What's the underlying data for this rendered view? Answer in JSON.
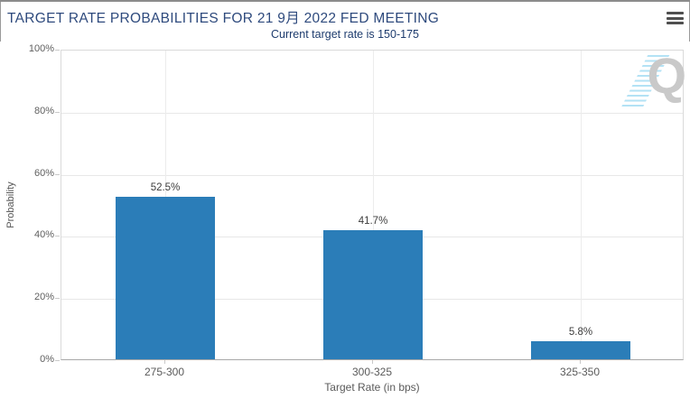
{
  "header": {
    "title": "TARGET RATE PROBABILITIES FOR 21 9月 2022 FED MEETING",
    "menu_icon": "hamburger-icon"
  },
  "chart_data": {
    "type": "bar",
    "title": "TARGET RATE PROBABILITIES FOR 21 9月 2022 FED MEETING",
    "subtitle": "Current target rate is 150-175",
    "categories": [
      "275-300",
      "300-325",
      "325-350"
    ],
    "values": [
      52.5,
      41.7,
      5.8
    ],
    "value_labels": [
      "52.5%",
      "41.7%",
      "5.8%"
    ],
    "xlabel": "Target Rate (in bps)",
    "ylabel": "Probability",
    "ylim": [
      0,
      100
    ],
    "ytick_step": 20,
    "ytick_labels": [
      "0%",
      "20%",
      "40%",
      "60%",
      "80%",
      "100%"
    ],
    "grid": true,
    "legend": "none",
    "bar_color": "#2b7db8"
  },
  "watermark": {
    "letter": "Q"
  },
  "colors": {
    "title_text": "#2e4a7d",
    "subtitle_text": "#1e3c6e",
    "bar": "#2b7db8",
    "axis_text": "#5a5a5a",
    "gridline": "#e8e8e8",
    "watermark_gray": "#c9c9c9",
    "watermark_blue": "#b3e2f5"
  }
}
